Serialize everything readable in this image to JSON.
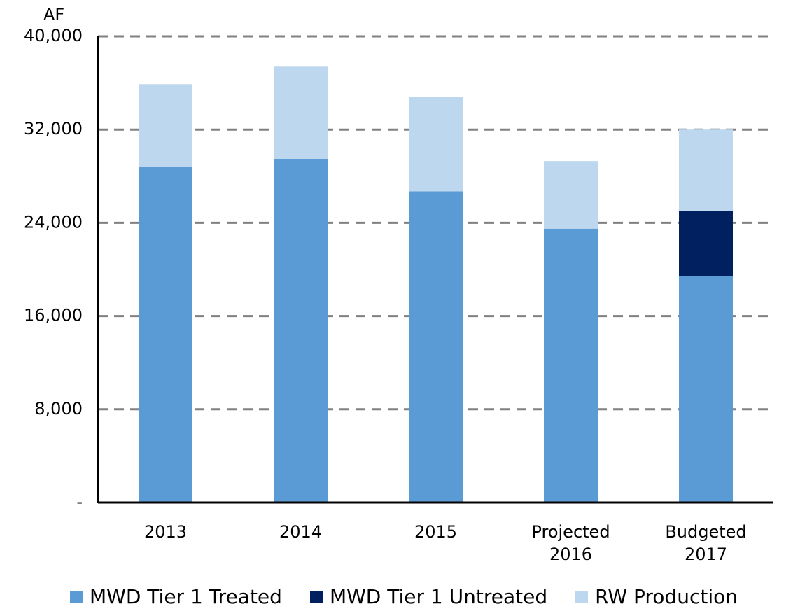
{
  "chart_data": {
    "type": "stacked_bar",
    "y_label": "AF",
    "categories": [
      "2013",
      "2014",
      "2015",
      "Projected 2016",
      "Budgeted 2017"
    ],
    "series": [
      {
        "name": "MWD Tier 1 Treated",
        "color": "#5b9bd5",
        "values": [
          28800,
          29500,
          26700,
          23500,
          19400
        ]
      },
      {
        "name": "MWD Tier 1 Untreated",
        "color": "#002060",
        "values": [
          null,
          null,
          null,
          null,
          5600
        ]
      },
      {
        "name": "RW Production",
        "color": "#bdd7ee",
        "values": [
          7100,
          7900,
          8100,
          5800,
          7000
        ]
      }
    ],
    "ylim": [
      0,
      40000
    ],
    "yticks": [
      {
        "value": 0,
        "label": "-"
      },
      {
        "value": 8000,
        "label": "8,000"
      },
      {
        "value": 16000,
        "label": "16,000"
      },
      {
        "value": 24000,
        "label": "24,000"
      },
      {
        "value": 32000,
        "label": "32,000"
      },
      {
        "value": 40000,
        "label": "40,000"
      }
    ],
    "grid": true
  }
}
